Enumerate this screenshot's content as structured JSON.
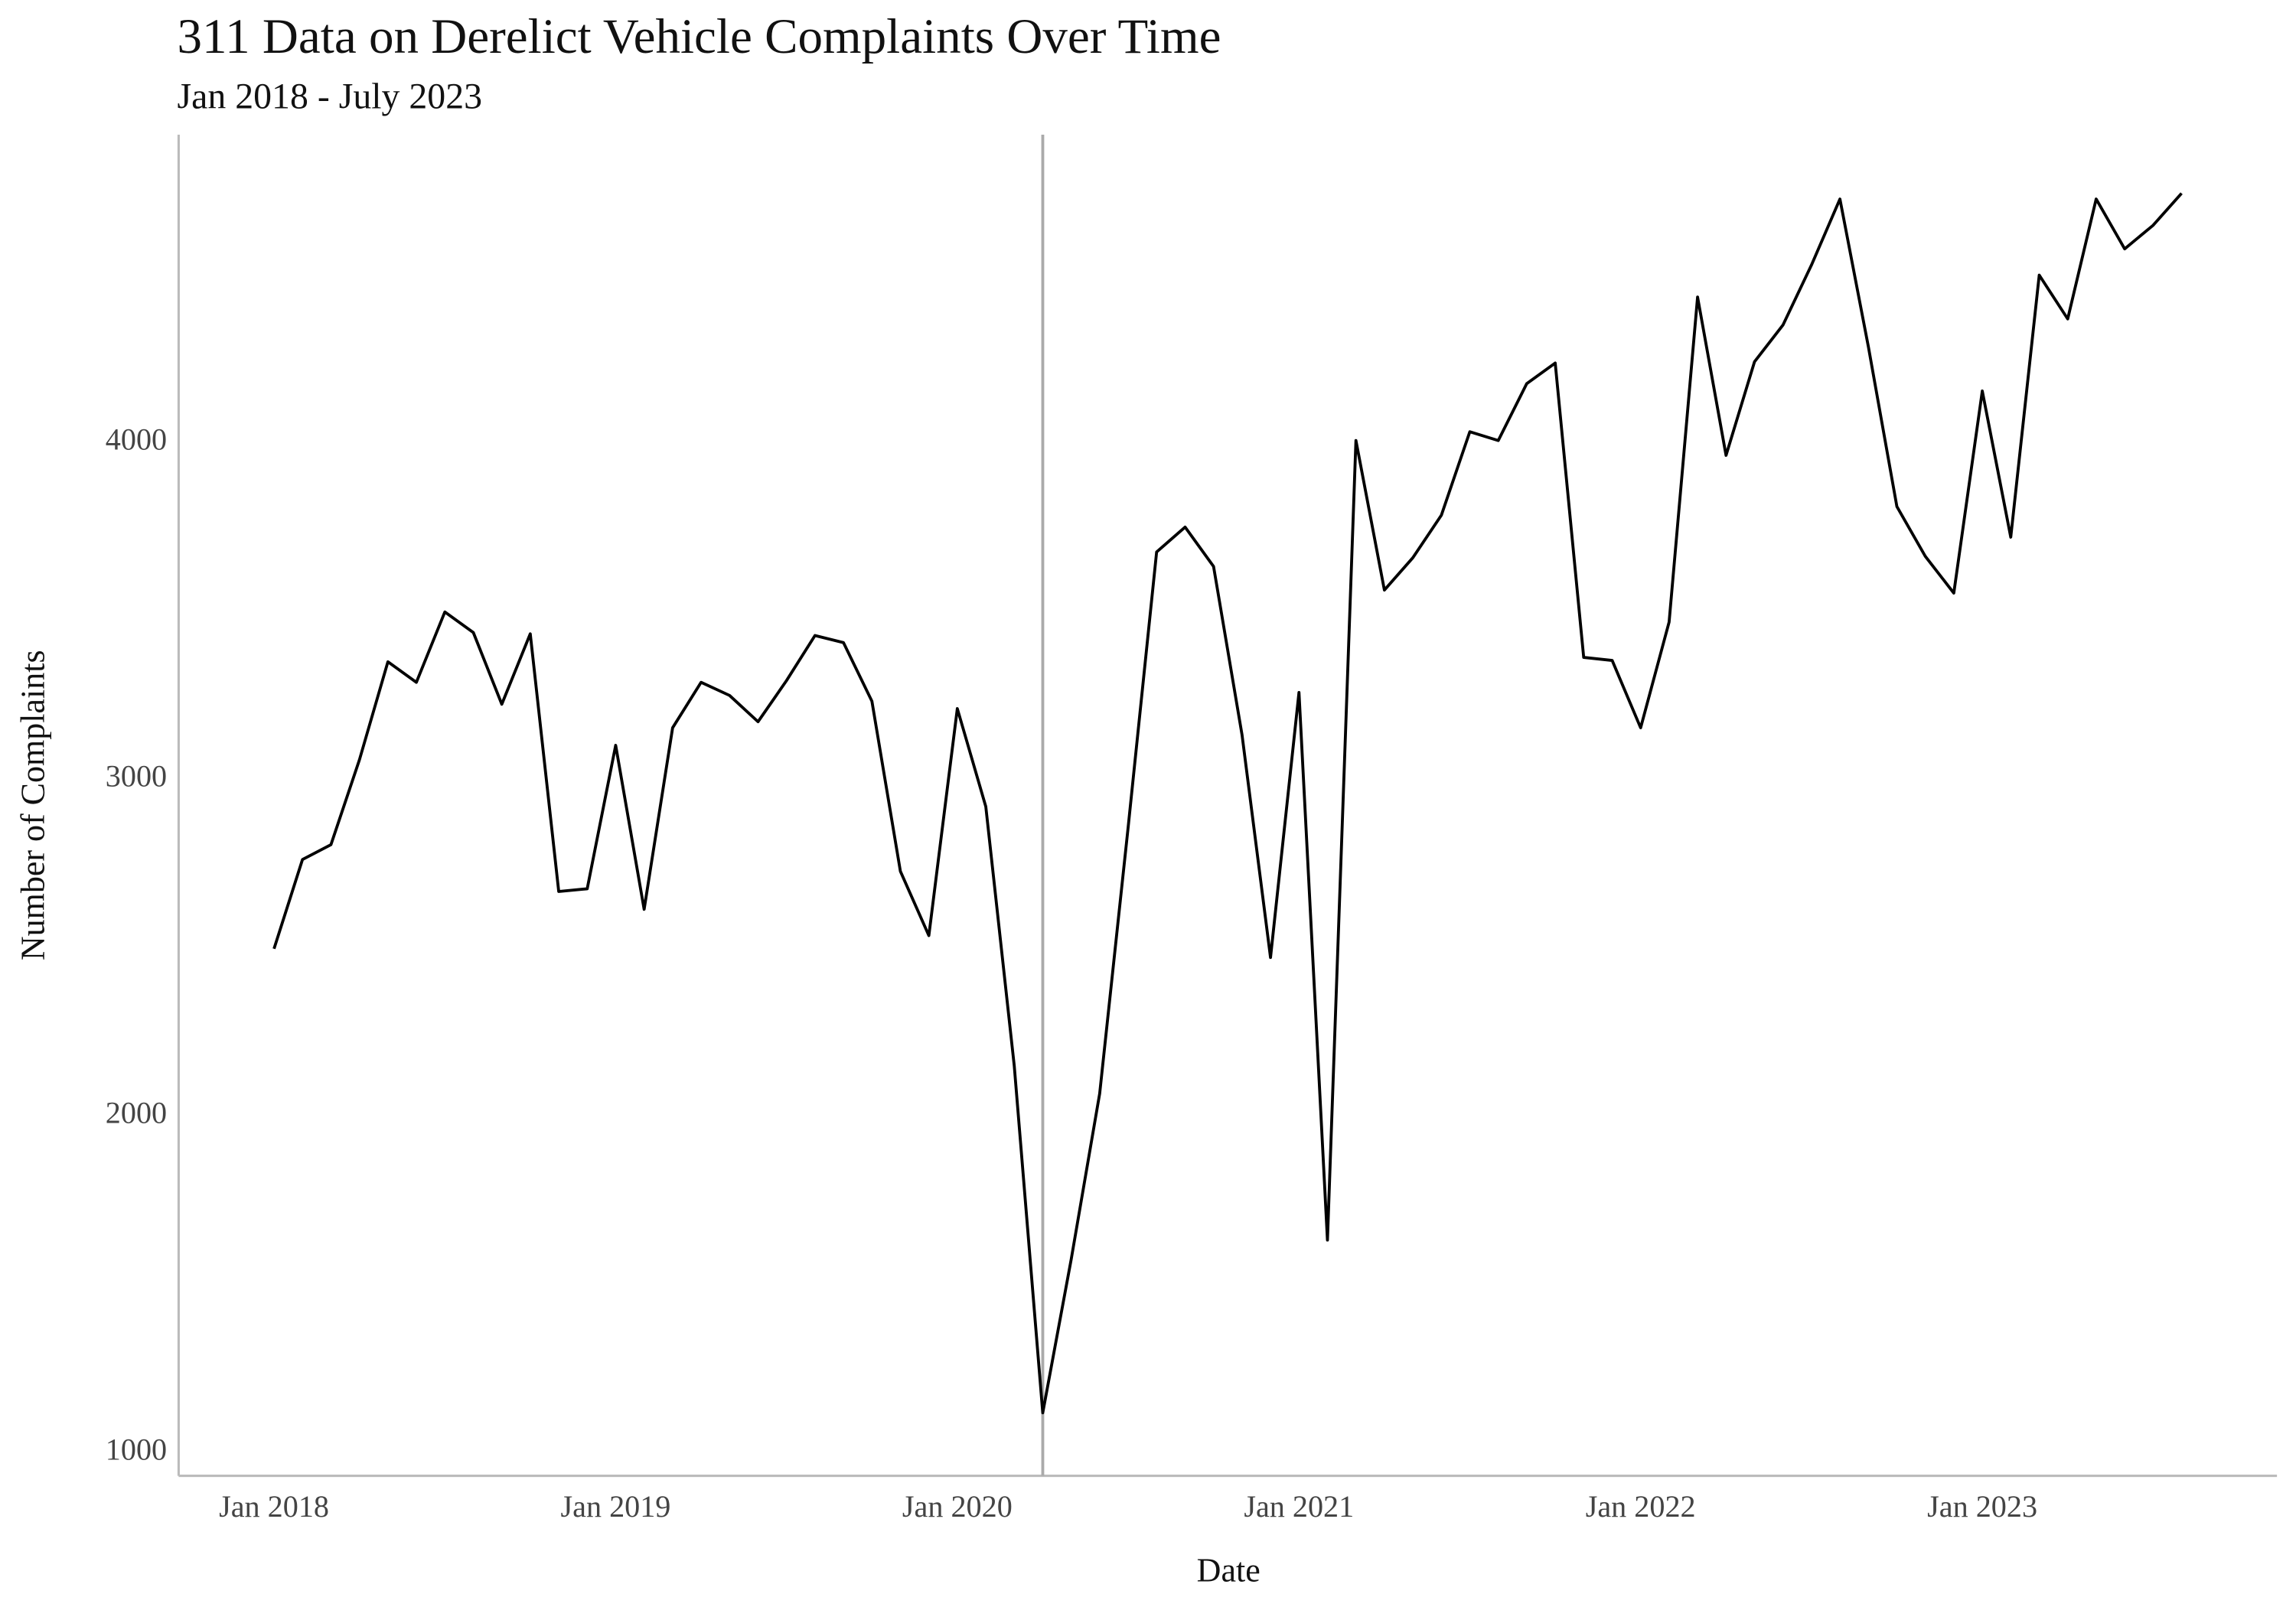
{
  "chart_data": {
    "type": "line",
    "title": "311 Data on Derelict Vehicle Complaints Over Time",
    "subtitle": "Jan 2018 - July 2023",
    "x_label": "Date",
    "y_label": "Number of Complaints",
    "x": [
      "2018-01",
      "2018-02",
      "2018-03",
      "2018-04",
      "2018-05",
      "2018-06",
      "2018-07",
      "2018-08",
      "2018-09",
      "2018-10",
      "2018-11",
      "2018-12",
      "2019-01",
      "2019-02",
      "2019-03",
      "2019-04",
      "2019-05",
      "2019-06",
      "2019-07",
      "2019-08",
      "2019-09",
      "2019-10",
      "2019-11",
      "2019-12",
      "2020-01",
      "2020-02",
      "2020-03",
      "2020-04",
      "2020-05",
      "2020-06",
      "2020-07",
      "2020-08",
      "2020-09",
      "2020-10",
      "2020-11",
      "2020-12",
      "2021-01",
      "2021-02",
      "2021-03",
      "2021-04",
      "2021-05",
      "2021-06",
      "2021-07",
      "2021-08",
      "2021-09",
      "2021-10",
      "2021-11",
      "2021-12",
      "2022-01",
      "2022-02",
      "2022-03",
      "2022-04",
      "2022-05",
      "2022-06",
      "2022-07",
      "2022-08",
      "2022-09",
      "2022-10",
      "2022-11",
      "2022-12",
      "2023-01",
      "2023-02",
      "2023-03",
      "2023-04",
      "2023-05",
      "2023-06",
      "2023-07",
      "2023-08"
    ],
    "series": [
      {
        "name": "Complaints",
        "color": "#000000",
        "values": [
          2487,
          2752,
          2796,
          3048,
          3339,
          3278,
          3487,
          3426,
          3213,
          3422,
          2657,
          2665,
          3091,
          2604,
          3143,
          3278,
          3239,
          3161,
          3283,
          3417,
          3396,
          3222,
          2717,
          2526,
          3200,
          2909,
          2139,
          1109,
          1565,
          2057,
          2848,
          3665,
          3739,
          3622,
          3122,
          2461,
          3248,
          1622,
          3996,
          3552,
          3648,
          3774,
          4022,
          3996,
          4165,
          4226,
          3352,
          3343,
          3143,
          3457,
          4422,
          3952,
          4230,
          4339,
          4517,
          4713,
          4274,
          3800,
          3652,
          3543,
          4143,
          3709,
          4487,
          4357,
          4713,
          4565,
          4635,
          4730
        ]
      }
    ],
    "xticks": [
      {
        "value": "2018-01",
        "label": "Jan 2018"
      },
      {
        "value": "2019-01",
        "label": "Jan 2019"
      },
      {
        "value": "2020-01",
        "label": "Jan 2020"
      },
      {
        "value": "2021-01",
        "label": "Jan 2021"
      },
      {
        "value": "2022-01",
        "label": "Jan 2022"
      },
      {
        "value": "2023-01",
        "label": "Jan 2023"
      }
    ],
    "ylim": [
      922,
      4904
    ],
    "yticks": [
      1000,
      2000,
      3000,
      4000
    ],
    "reference_line": "2020-04",
    "reference_color": "#aaaaaa",
    "grid": false
  }
}
